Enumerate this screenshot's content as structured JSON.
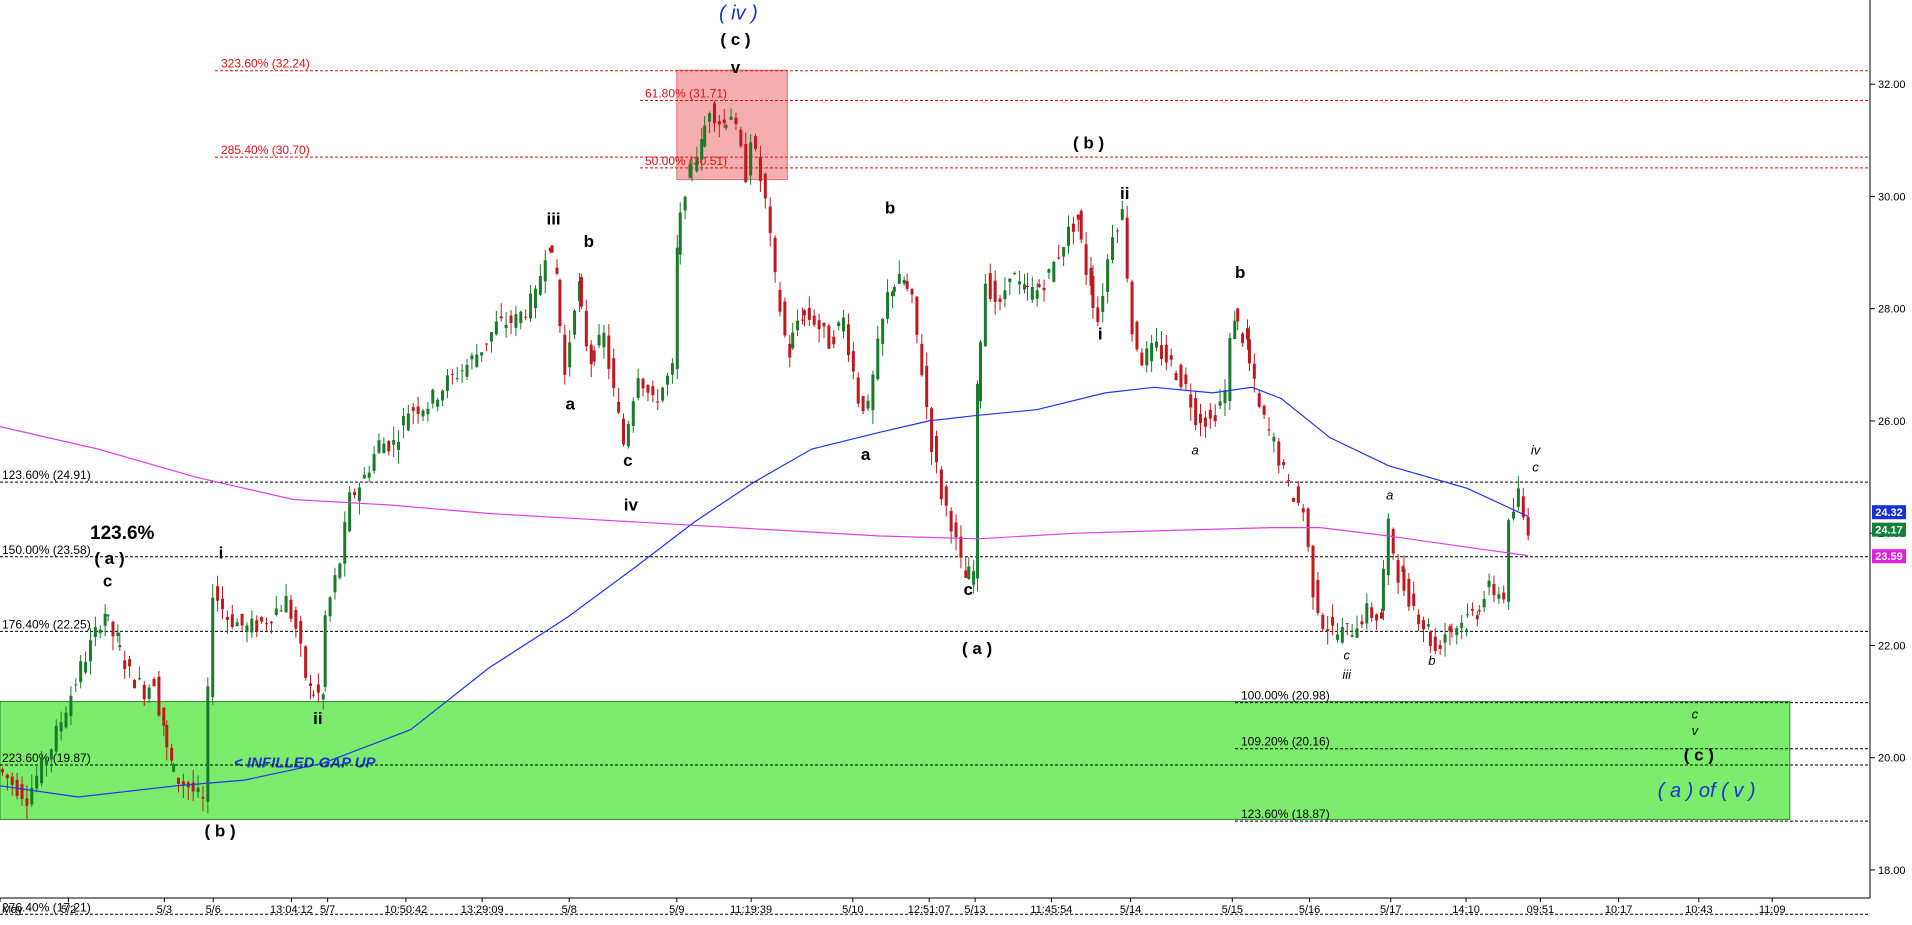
{
  "colors": {
    "up_candle": "#1a7a2a",
    "down_candle": "#c0181f",
    "ma_blue": "#2233ee",
    "ma_magenta": "#e040e0",
    "fib_red": "#e01010",
    "fib_black": "#000000",
    "gap_zone": "#7cec6c",
    "resistance_zone": "#f4a0a0",
    "label_blue": "#1a33cc",
    "price_badge_blue": "#1630d8",
    "price_badge_green": "#12803a",
    "price_badge_magenta": "#e020e0"
  },
  "chart_data": {
    "type": "candlestick",
    "ylim": [
      17.5,
      33.5
    ],
    "y_ticks": [
      "18.00",
      "20.00",
      "22.00",
      "24.00",
      "26.00",
      "28.00",
      "30.00",
      "32.00"
    ],
    "x_ticks": [
      "May",
      "5/2",
      "5/3",
      "5/6",
      "13:04:12",
      "5/7",
      "10:50:42",
      "13:29:09",
      "5/8",
      "5/9",
      "11:19:39",
      "5/10",
      "12:51:07",
      "5/13",
      "11:45:54",
      "5/14",
      "5/15",
      "5/16",
      "5/17",
      "14:10",
      "09:51",
      "10:17",
      "10:43",
      "11:09"
    ],
    "x_tick_index": [
      0,
      70,
      168,
      218,
      298,
      335,
      415,
      493,
      582,
      692,
      768,
      872,
      950,
      997,
      1075,
      1156,
      1260,
      1339,
      1422,
      1499,
      1575,
      1655,
      1737,
      1812
    ],
    "price_path": [
      [
        0,
        19.8
      ],
      [
        30,
        19.3
      ],
      [
        55,
        20.2
      ],
      [
        70,
        20.9
      ],
      [
        85,
        21.6
      ],
      [
        100,
        22.2
      ],
      [
        108,
        22.6
      ],
      [
        120,
        22.1
      ],
      [
        135,
        21.5
      ],
      [
        150,
        21.2
      ],
      [
        160,
        21.4
      ],
      [
        168,
        20.6
      ],
      [
        175,
        19.9
      ],
      [
        185,
        19.6
      ],
      [
        195,
        19.5
      ],
      [
        210,
        19.2
      ],
      [
        220,
        23.0
      ],
      [
        235,
        22.5
      ],
      [
        255,
        22.3
      ],
      [
        270,
        22.4
      ],
      [
        295,
        22.8
      ],
      [
        305,
        22.3
      ],
      [
        318,
        21.2
      ],
      [
        330,
        21.1
      ],
      [
        335,
        22.5
      ],
      [
        350,
        23.5
      ],
      [
        360,
        24.6
      ],
      [
        375,
        25.0
      ],
      [
        390,
        25.6
      ],
      [
        405,
        25.6
      ],
      [
        420,
        26.2
      ],
      [
        440,
        26.3
      ],
      [
        460,
        26.7
      ],
      [
        480,
        27.0
      ],
      [
        495,
        27.3
      ],
      [
        510,
        27.7
      ],
      [
        530,
        27.8
      ],
      [
        550,
        28.2
      ],
      [
        562,
        29.2
      ],
      [
        570,
        28.6
      ],
      [
        580,
        26.8
      ],
      [
        592,
        28.4
      ],
      [
        605,
        27.1
      ],
      [
        620,
        27.5
      ],
      [
        630,
        26.5
      ],
      [
        640,
        25.6
      ],
      [
        655,
        26.9
      ],
      [
        670,
        26.3
      ],
      [
        690,
        26.9
      ],
      [
        693,
        29.0
      ],
      [
        705,
        30.4
      ],
      [
        718,
        30.9
      ],
      [
        728,
        31.6
      ],
      [
        740,
        31.3
      ],
      [
        750,
        31.5
      ],
      [
        765,
        30.4
      ],
      [
        770,
        31.1
      ],
      [
        785,
        29.9
      ],
      [
        795,
        28.5
      ],
      [
        808,
        27.2
      ],
      [
        820,
        27.9
      ],
      [
        835,
        27.8
      ],
      [
        850,
        27.4
      ],
      [
        865,
        27.8
      ],
      [
        880,
        26.4
      ],
      [
        890,
        26.2
      ],
      [
        900,
        27.3
      ],
      [
        912,
        28.4
      ],
      [
        925,
        28.5
      ],
      [
        935,
        28.1
      ],
      [
        945,
        26.9
      ],
      [
        955,
        25.6
      ],
      [
        965,
        24.7
      ],
      [
        975,
        24.2
      ],
      [
        988,
        23.2
      ],
      [
        997,
        23.3
      ],
      [
        1000,
        26.5
      ],
      [
        1010,
        28.5
      ],
      [
        1025,
        28.0
      ],
      [
        1035,
        28.7
      ],
      [
        1048,
        28.3
      ],
      [
        1060,
        28.3
      ],
      [
        1075,
        28.6
      ],
      [
        1090,
        29.2
      ],
      [
        1103,
        29.6
      ],
      [
        1115,
        28.5
      ],
      [
        1125,
        27.8
      ],
      [
        1140,
        29.4
      ],
      [
        1150,
        29.7
      ],
      [
        1160,
        27.6
      ],
      [
        1170,
        27.1
      ],
      [
        1185,
        27.3
      ],
      [
        1200,
        27.0
      ],
      [
        1215,
        26.6
      ],
      [
        1225,
        26.1
      ],
      [
        1240,
        26.0
      ],
      [
        1255,
        26.5
      ],
      [
        1263,
        27.9
      ],
      [
        1275,
        27.4
      ],
      [
        1290,
        26.2
      ],
      [
        1305,
        25.6
      ],
      [
        1320,
        24.8
      ],
      [
        1335,
        24.4
      ],
      [
        1345,
        23.0
      ],
      [
        1355,
        22.4
      ],
      [
        1370,
        22.2
      ],
      [
        1385,
        22.3
      ],
      [
        1400,
        22.6
      ],
      [
        1412,
        22.5
      ],
      [
        1422,
        24.1
      ],
      [
        1433,
        23.2
      ],
      [
        1448,
        22.7
      ],
      [
        1460,
        22.3
      ],
      [
        1470,
        21.9
      ],
      [
        1482,
        22.3
      ],
      [
        1498,
        22.4
      ],
      [
        1510,
        22.6
      ],
      [
        1525,
        23.0
      ],
      [
        1540,
        22.9
      ],
      [
        1545,
        24.1
      ],
      [
        1555,
        24.7
      ],
      [
        1562,
        24.1
      ]
    ],
    "moving_average_blue": [
      [
        0,
        19.5
      ],
      [
        80,
        19.3
      ],
      [
        180,
        19.5
      ],
      [
        250,
        19.6
      ],
      [
        330,
        19.9
      ],
      [
        420,
        20.5
      ],
      [
        500,
        21.6
      ],
      [
        580,
        22.5
      ],
      [
        650,
        23.4
      ],
      [
        710,
        24.2
      ],
      [
        770,
        24.9
      ],
      [
        830,
        25.5
      ],
      [
        900,
        25.8
      ],
      [
        950,
        26.0
      ],
      [
        1000,
        26.1
      ],
      [
        1060,
        26.2
      ],
      [
        1130,
        26.5
      ],
      [
        1180,
        26.6
      ],
      [
        1240,
        26.5
      ],
      [
        1280,
        26.6
      ],
      [
        1310,
        26.4
      ],
      [
        1360,
        25.7
      ],
      [
        1420,
        25.2
      ],
      [
        1500,
        24.8
      ],
      [
        1562,
        24.3
      ]
    ],
    "moving_average_magenta": [
      [
        0,
        25.9
      ],
      [
        100,
        25.5
      ],
      [
        200,
        25.0
      ],
      [
        300,
        24.6
      ],
      [
        400,
        24.5
      ],
      [
        500,
        24.35
      ],
      [
        600,
        24.25
      ],
      [
        700,
        24.15
      ],
      [
        800,
        24.05
      ],
      [
        900,
        23.95
      ],
      [
        1000,
        23.9
      ],
      [
        1100,
        24.0
      ],
      [
        1200,
        24.05
      ],
      [
        1300,
        24.1
      ],
      [
        1350,
        24.1
      ],
      [
        1420,
        23.95
      ],
      [
        1500,
        23.75
      ],
      [
        1562,
        23.6
      ]
    ],
    "fib_levels": [
      {
        "label": "323.60% (32.24)",
        "value": 32.24,
        "color": "red"
      },
      {
        "label": "61.80% (31.71)",
        "value": 31.71,
        "color": "red"
      },
      {
        "label": "285.40% (30.70)",
        "value": 30.7,
        "color": "red"
      },
      {
        "label": "50.00% (30.51)",
        "value": 30.51,
        "color": "red"
      },
      {
        "label": "123.60% (24.91)",
        "value": 24.91,
        "color": "black"
      },
      {
        "label": "150.00% (23.58)",
        "value": 23.58,
        "color": "black"
      },
      {
        "label": "176.40% (22.25)",
        "value": 22.25,
        "color": "black"
      },
      {
        "label": "223.60% (19.87)",
        "value": 19.87,
        "color": "black"
      },
      {
        "label": "276.40% (17.21)",
        "value": 17.21,
        "color": "black"
      },
      {
        "label": "100.00% (20.98)",
        "value": 20.98,
        "color": "black"
      },
      {
        "label": "109.20% (20.16)",
        "value": 20.16,
        "color": "black"
      },
      {
        "label": "123.60% (18.87)",
        "value": 18.87,
        "color": "black"
      }
    ],
    "zones": [
      {
        "name": "gap",
        "from_index": 0,
        "to_index": 1830,
        "low": 18.9,
        "high": 21.0,
        "label": "< INFILLED GAP UP"
      },
      {
        "name": "resistance",
        "from_index": 692,
        "to_index": 805,
        "low": 30.3,
        "high": 32.25
      }
    ],
    "wave_labels": [
      {
        "text": "( iv )",
        "index": 755,
        "price": 33.15,
        "color": "blue"
      },
      {
        "text": "( c )",
        "index": 752,
        "price": 32.7,
        "color": "black"
      },
      {
        "text": "v",
        "index": 752,
        "price": 32.2,
        "color": "black"
      },
      {
        "text": "( b )",
        "index": 1113,
        "price": 30.85,
        "color": "black"
      },
      {
        "text": "ii",
        "index": 1150,
        "price": 29.95,
        "color": "black"
      },
      {
        "text": "iii",
        "index": 566,
        "price": 29.5,
        "color": "black"
      },
      {
        "text": "b",
        "index": 602,
        "price": 29.1,
        "color": "black"
      },
      {
        "text": "b",
        "index": 910,
        "price": 29.7,
        "color": "black"
      },
      {
        "text": "a",
        "index": 583,
        "price": 26.2,
        "color": "black"
      },
      {
        "text": "c",
        "index": 642,
        "price": 25.2,
        "color": "black"
      },
      {
        "text": "iv",
        "index": 645,
        "price": 24.4,
        "color": "black"
      },
      {
        "text": "a",
        "index": 885,
        "price": 25.3,
        "color": "black"
      },
      {
        "text": "c",
        "index": 990,
        "price": 22.9,
        "color": "black"
      },
      {
        "text": "( a )",
        "index": 999,
        "price": 21.85,
        "color": "black"
      },
      {
        "text": "i",
        "index": 1125,
        "price": 27.45,
        "color": "black"
      },
      {
        "text": "b",
        "index": 1268,
        "price": 28.55,
        "color": "black"
      },
      {
        "text": "a",
        "index": 1222,
        "price": 25.4,
        "color": "black"
      },
      {
        "text": "a",
        "index": 1421,
        "price": 24.6,
        "color": "black"
      },
      {
        "text": "c",
        "index": 1377,
        "price": 21.75,
        "color": "black"
      },
      {
        "text": "iii",
        "index": 1377,
        "price": 21.4,
        "color": "black"
      },
      {
        "text": "b",
        "index": 1464,
        "price": 21.65,
        "color": "black"
      },
      {
        "text": "iv",
        "index": 1570,
        "price": 25.4,
        "color": "black"
      },
      {
        "text": "c",
        "index": 1570,
        "price": 25.1,
        "color": "black"
      },
      {
        "text": "c",
        "index": 1733,
        "price": 20.7,
        "color": "black"
      },
      {
        "text": "v",
        "index": 1733,
        "price": 20.4,
        "color": "black"
      },
      {
        "text": "( c )",
        "index": 1737,
        "price": 19.95,
        "color": "black"
      },
      {
        "text": "( a ) of ( v )",
        "index": 1745,
        "price": 19.3,
        "color": "blue"
      },
      {
        "text": "123.6%",
        "index": 125,
        "price": 23.9,
        "color": "black"
      },
      {
        "text": "( a )",
        "index": 112,
        "price": 23.45,
        "color": "black"
      },
      {
        "text": "c",
        "index": 110,
        "price": 23.05,
        "color": "black"
      },
      {
        "text": "i",
        "index": 226,
        "price": 23.55,
        "color": "black"
      },
      {
        "text": "ii",
        "index": 325,
        "price": 20.6,
        "color": "black"
      },
      {
        "text": "( b )",
        "index": 225,
        "price": 18.6,
        "color": "black"
      }
    ],
    "price_badges": [
      {
        "text": "24.32",
        "value": 24.32,
        "color": "blue"
      },
      {
        "text": "24.17",
        "value": 24.17,
        "color": "green"
      },
      {
        "text": "23.59",
        "value": 23.59,
        "color": "magenta"
      }
    ]
  }
}
